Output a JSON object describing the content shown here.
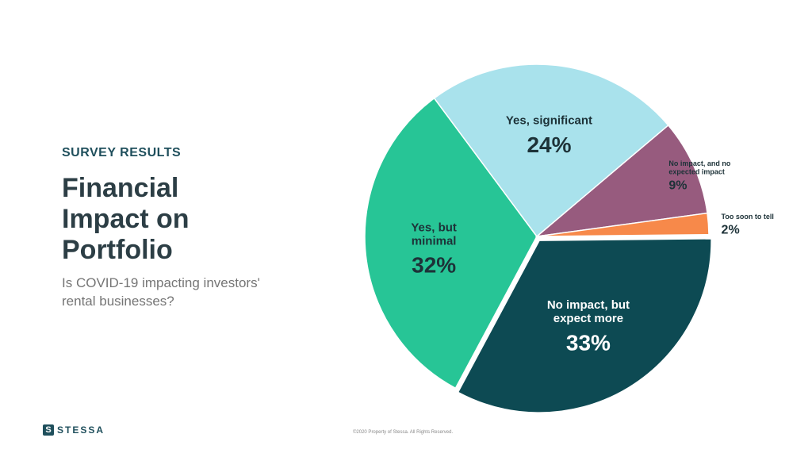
{
  "header": {
    "kicker": "SURVEY RESULTS",
    "title_lines": [
      "Financial",
      "Impact on",
      "Portfolio"
    ],
    "subtitle": "Is COVID-19 impacting investors' rental businesses?"
  },
  "footer": {
    "brand": "STESSA",
    "brand_mark": "S",
    "copyright": "©2020 Property of Stessa. All Rights Reserved."
  },
  "chart_data": {
    "type": "pie",
    "title": "Financial Impact on Portfolio",
    "slices": [
      {
        "label": "No impact, but expect more",
        "value": 33,
        "display": "33%",
        "color": "#0d4a53",
        "exploded": true
      },
      {
        "label": "Yes, but minimal",
        "value": 32,
        "display": "32%",
        "color": "#27c596"
      },
      {
        "label": "Yes, significant",
        "value": 24,
        "display": "24%",
        "color": "#a9e2ec"
      },
      {
        "label": "No impact, and no expected impact",
        "value": 9,
        "display": "9%",
        "color": "#975b7e"
      },
      {
        "label": "Too soon to tell",
        "value": 2,
        "display": "2%",
        "color": "#f7894a"
      }
    ]
  }
}
